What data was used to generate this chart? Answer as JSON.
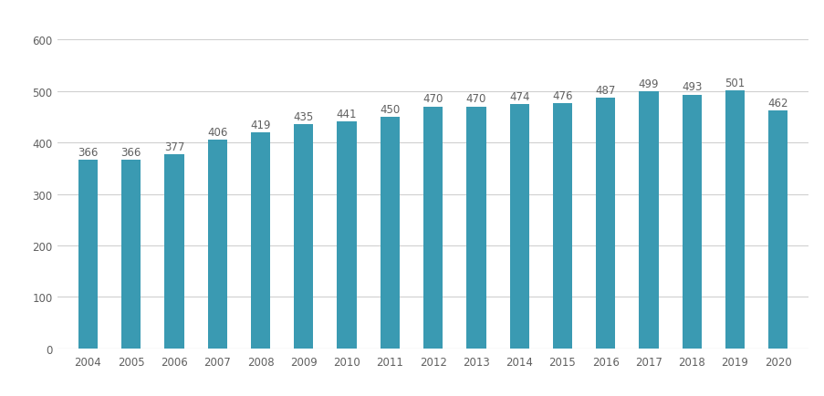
{
  "years": [
    2004,
    2005,
    2006,
    2007,
    2008,
    2009,
    2010,
    2011,
    2012,
    2013,
    2014,
    2015,
    2016,
    2017,
    2018,
    2019,
    2020
  ],
  "values": [
    366,
    366,
    377,
    406,
    419,
    435,
    441,
    450,
    470,
    470,
    474,
    476,
    487,
    499,
    493,
    501,
    462
  ],
  "bar_color": "#3a9ab2",
  "background_color": "#ffffff",
  "ylim": [
    0,
    640
  ],
  "yticks": [
    0,
    100,
    200,
    300,
    400,
    500,
    600
  ],
  "label_fontsize": 8.5,
  "tick_fontsize": 8.5,
  "label_color": "#606060",
  "grid_color": "#d0d0d0",
  "bar_width": 0.45
}
